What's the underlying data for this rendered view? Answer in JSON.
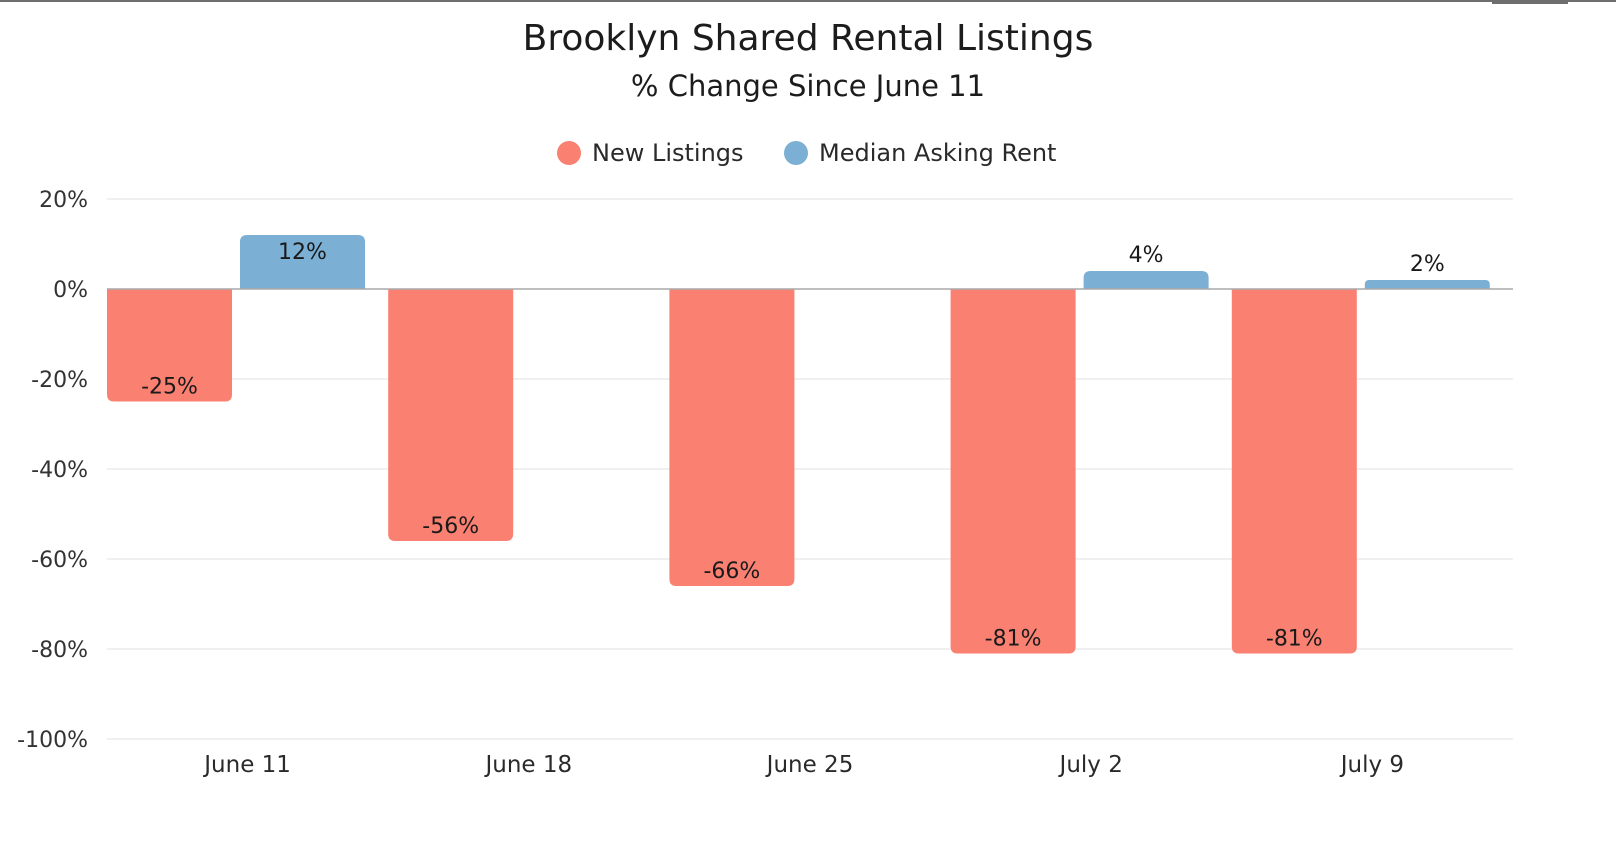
{
  "colors": {
    "new_listings": "#FA8072",
    "median_rent": "#7BAFD4"
  },
  "chart_data": {
    "type": "bar",
    "title": "Brooklyn Shared Rental Listings",
    "subtitle": "% Change Since June 11",
    "categories": [
      "June 11",
      "June 18",
      "June 25",
      "July 2",
      "July 9"
    ],
    "series": [
      {
        "name": "New Listings",
        "values": [
          -25,
          -56,
          -66,
          -81,
          -81
        ],
        "labels": [
          "-25%",
          "-56%",
          "-66%",
          "-81%",
          "-81%"
        ]
      },
      {
        "name": "Median Asking Rent",
        "values": [
          12,
          0,
          0,
          4,
          2
        ],
        "labels": [
          "12%",
          "",
          "",
          "4%",
          "2%"
        ]
      }
    ],
    "ylim": [
      -100,
      20
    ],
    "yticks": [
      20,
      0,
      -20,
      -40,
      -60,
      -80,
      -100
    ],
    "ytick_labels": [
      "20%",
      "0%",
      "-20%",
      "-40%",
      "-60%",
      "-80%",
      "-100%"
    ],
    "legend": "top",
    "grid": true
  }
}
